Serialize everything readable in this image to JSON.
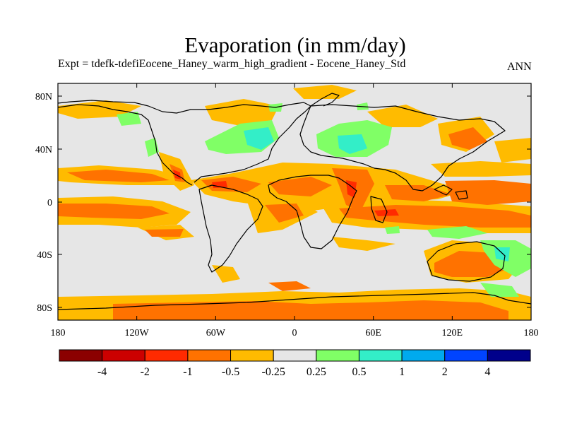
{
  "title": "Evaporation (in mm/day)",
  "subtitle": "Expt = tdefk-tdefiEocene_Haney_warm_high_gradient - Eocene_Haney_Std",
  "season": "ANN",
  "axes": {
    "x_ticks": [
      "180",
      "120W",
      "60W",
      "0",
      "60E",
      "120E",
      "180"
    ],
    "y_ticks": [
      "80N",
      "40N",
      "0",
      "40S",
      "80S"
    ]
  },
  "colorbar": {
    "labels": [
      "-4",
      "-2",
      "-1",
      "-0.5",
      "-0.25",
      "0.25",
      "0.5",
      "1",
      "2",
      "4"
    ],
    "colors": [
      "#8b0000",
      "#cc0000",
      "#ff2a00",
      "#ff7200",
      "#ffbb00",
      "#e6e6e6",
      "#80ff66",
      "#33eec8",
      "#00aaee",
      "#0044ff",
      "#00008b"
    ]
  },
  "palette": {
    "neutral": "#e6e6e6",
    "orange_light": "#ffbb00",
    "orange": "#ff7200",
    "red": "#ff2a00",
    "green": "#80ff66",
    "cyan": "#33eec8"
  }
}
